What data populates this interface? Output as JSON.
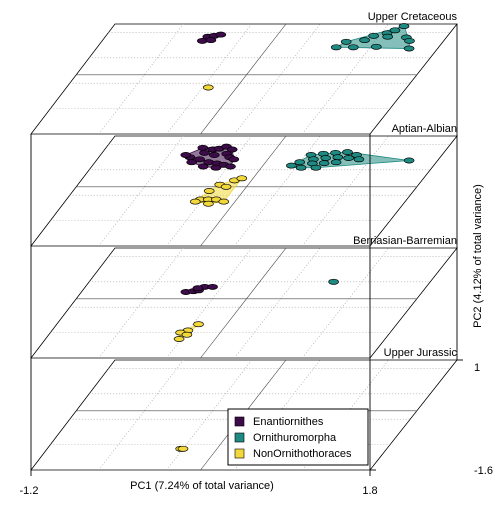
{
  "chart_data": {
    "type": "scatter",
    "subtype": "stacked-3d-morphospace",
    "xlabel": "PC1 (7.24% of total variance)",
    "ylabel": "PC2 (4.12% of total variance)",
    "xlim": [
      -1.2,
      1.8
    ],
    "ylim": [
      -1.6,
      1
    ],
    "x_tick_labels": [
      "-1.2",
      "1.8"
    ],
    "y_tick_labels": [
      "-1.6",
      "1"
    ],
    "grid": true,
    "convex_hulls": true,
    "legend": {
      "placement": "bottom-right",
      "entries": [
        "Enantiornithes",
        "Ornithuromorpha",
        "NonOrnithothoraces"
      ]
    },
    "series_colors": {
      "Enantiornithes": "#3d0a4a",
      "Ornithuromorpha": "#1f8a82",
      "NonOrnithothoraces": "#f2d83a"
    },
    "layers": [
      {
        "name": "Upper Jurassic",
        "series": [
          {
            "name": "Enantiornithes",
            "points": []
          },
          {
            "name": "Ornithuromorpha",
            "points": []
          },
          {
            "name": "NonOrnithothoraces",
            "points": [
              [
                -0.02,
                -1.1
              ],
              [
                0.0,
                -1.1
              ]
            ]
          }
        ]
      },
      {
        "name": "Berriasian-Barremian",
        "series": [
          {
            "name": "Enantiornithes",
            "points": [
              [
                -0.15,
                0.08
              ],
              [
                -0.08,
                0.08
              ],
              [
                -0.28,
                -0.04
              ],
              [
                -0.22,
                -0.02
              ],
              [
                -0.18,
                0.0
              ],
              [
                -0.2,
                0.05
              ]
            ]
          },
          {
            "name": "Ornithuromorpha",
            "points": [
              [
                0.95,
                0.2
              ]
            ]
          },
          {
            "name": "NonOrnithothoraces",
            "points": [
              [
                0.05,
                -0.8
              ],
              [
                0.0,
                -0.95
              ],
              [
                -0.05,
                -1.0
              ],
              [
                0.02,
                -1.05
              ],
              [
                -0.02,
                -1.15
              ]
            ]
          }
        ]
      },
      {
        "name": "Aptian-Albian",
        "series": [
          {
            "name": "Enantiornithes",
            "points": [
              [
                -0.35,
                0.72
              ],
              [
                -0.25,
                0.68
              ],
              [
                -0.2,
                0.7
              ],
              [
                -0.15,
                0.75
              ],
              [
                -0.08,
                0.68
              ],
              [
                -0.3,
                0.6
              ],
              [
                -0.2,
                0.55
              ],
              [
                -0.1,
                0.58
              ],
              [
                -0.05,
                0.5
              ],
              [
                0.0,
                0.45
              ],
              [
                -0.4,
                0.5
              ],
              [
                -0.3,
                0.45
              ],
              [
                -0.2,
                0.38
              ],
              [
                -0.12,
                0.35
              ],
              [
                -0.05,
                0.32
              ],
              [
                0.02,
                0.28
              ],
              [
                -0.1,
                0.25
              ],
              [
                -0.22,
                0.28
              ],
              [
                -0.35,
                0.38
              ],
              [
                -0.45,
                0.55
              ]
            ]
          },
          {
            "name": "Ornithuromorpha",
            "points": [
              [
                0.65,
                0.55
              ],
              [
                0.75,
                0.58
              ],
              [
                0.85,
                0.6
              ],
              [
                0.95,
                0.62
              ],
              [
                1.05,
                0.55
              ],
              [
                0.7,
                0.45
              ],
              [
                0.8,
                0.48
              ],
              [
                0.9,
                0.5
              ],
              [
                1.0,
                0.48
              ],
              [
                0.6,
                0.38
              ],
              [
                0.72,
                0.35
              ],
              [
                0.82,
                0.36
              ],
              [
                0.92,
                0.38
              ],
              [
                0.55,
                0.3
              ],
              [
                0.65,
                0.25
              ],
              [
                0.78,
                0.25
              ],
              [
                1.1,
                0.45
              ],
              [
                1.55,
                0.42
              ]
            ]
          },
          {
            "name": "NonOrnithothoraces",
            "points": [
              [
                0.15,
                -0.05
              ],
              [
                0.2,
                0.0
              ],
              [
                0.05,
                -0.15
              ],
              [
                0.12,
                -0.2
              ],
              [
                0.0,
                -0.3
              ],
              [
                -0.02,
                -0.5
              ],
              [
                0.05,
                -0.5
              ],
              [
                0.12,
                -0.5
              ],
              [
                0.2,
                -0.55
              ],
              [
                -0.05,
                -0.55
              ],
              [
                0.08,
                -0.6
              ]
            ]
          }
        ]
      },
      {
        "name": "Upper Cretaceous",
        "series": [
          {
            "name": "Enantiornithes",
            "points": [
              [
                -0.3,
                0.7
              ],
              [
                -0.25,
                0.72
              ],
              [
                -0.2,
                0.75
              ],
              [
                -0.32,
                0.6
              ],
              [
                -0.25,
                0.62
              ]
            ]
          },
          {
            "name": "Ornithuromorpha",
            "points": [
              [
                1.35,
                0.95
              ],
              [
                1.3,
                0.85
              ],
              [
                1.25,
                0.78
              ],
              [
                1.15,
                0.72
              ],
              [
                1.28,
                0.7
              ],
              [
                1.45,
                0.68
              ],
              [
                1.5,
                0.6
              ],
              [
                1.1,
                0.62
              ],
              [
                0.9,
                0.45
              ],
              [
                1.05,
                0.45
              ],
              [
                1.25,
                0.46
              ],
              [
                1.55,
                0.42
              ],
              [
                0.95,
                0.58
              ]
            ]
          },
          {
            "name": "NonOrnithothoraces",
            "points": [
              [
                0.05,
                -0.5
              ]
            ]
          }
        ]
      }
    ]
  }
}
